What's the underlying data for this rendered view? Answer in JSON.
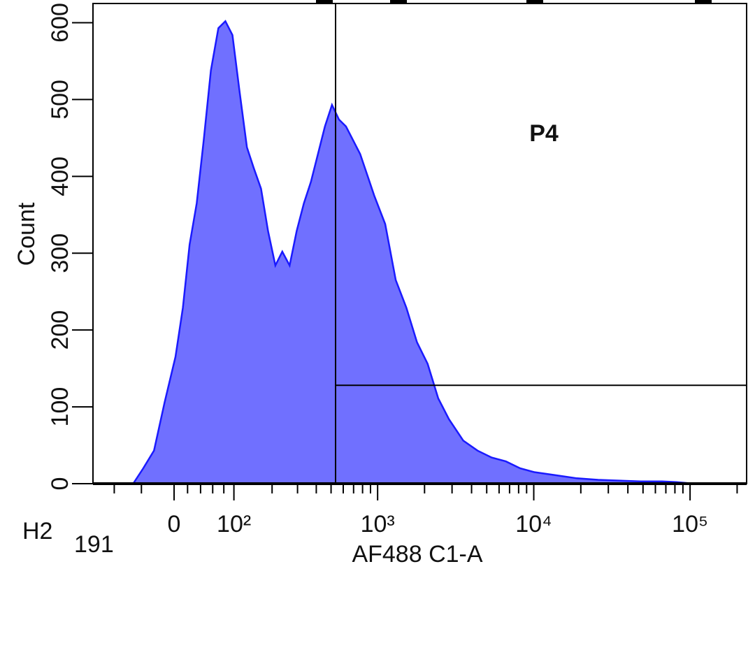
{
  "chart_data": {
    "type": "area",
    "xlabel": "AF488 C1-A",
    "ylabel": "Count",
    "sample_label": "H2",
    "event_label": "191",
    "xscale": "biexponential",
    "xlim": [
      -150,
      230000
    ],
    "ylim": [
      0,
      625
    ],
    "xticks": [
      0,
      {
        "value": 100,
        "label": "10²"
      },
      {
        "value": 1000,
        "label": "10³"
      },
      {
        "value": 10000,
        "label": "10⁴"
      },
      {
        "value": 100000,
        "label": "10⁵"
      }
    ],
    "xminorticks": [
      -100,
      -50,
      20,
      40,
      60,
      80,
      200,
      300,
      400,
      500,
      600,
      700,
      800,
      900,
      2000,
      3000,
      4000,
      5000,
      6000,
      7000,
      8000,
      9000,
      20000,
      30000,
      40000,
      50000,
      60000,
      70000,
      80000,
      90000,
      200000
    ],
    "yticks": [
      0,
      100,
      200,
      300,
      400,
      500,
      600
    ],
    "color": "#1a1aff",
    "fill": "#7070ff",
    "x": [
      -64,
      -47,
      -30,
      -14,
      2,
      13,
      23,
      34,
      45,
      57,
      70,
      83,
      97,
      112,
      129,
      146,
      166,
      187,
      211,
      236,
      265,
      296,
      331,
      369,
      410,
      456,
      507,
      563,
      625,
      695,
      772,
      857,
      951,
      1118,
      1308,
      1530,
      1790,
      2093,
      2449,
      2866,
      3540,
      4366,
      5380,
      6630,
      8180,
      10080,
      13800,
      18880,
      25840,
      35370,
      48430,
      66300,
      81700,
      106200
    ],
    "values": [
      0,
      20,
      43,
      106,
      165,
      229,
      311,
      365,
      447,
      538,
      593,
      602,
      584,
      511,
      438,
      411,
      384,
      329,
      284,
      302,
      284,
      329,
      365,
      393,
      429,
      465,
      493,
      474,
      465,
      447,
      429,
      402,
      375,
      338,
      265,
      229,
      184,
      156,
      111,
      84,
      56,
      43,
      34,
      29,
      20,
      15,
      11,
      7,
      5,
      4,
      3,
      3,
      2,
      0
    ],
    "gate": {
      "label": "P4",
      "x": 535,
      "y": 128
    }
  }
}
